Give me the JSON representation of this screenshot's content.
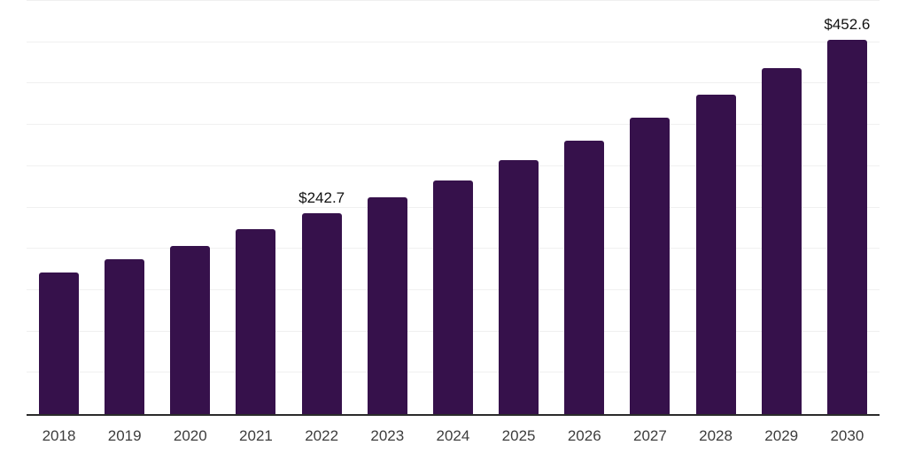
{
  "chart_data": {
    "type": "bar",
    "title": "",
    "xlabel": "",
    "ylabel": "",
    "categories": [
      "2018",
      "2019",
      "2020",
      "2021",
      "2022",
      "2023",
      "2024",
      "2025",
      "2026",
      "2027",
      "2028",
      "2029",
      "2030"
    ],
    "values": [
      171.1,
      187.0,
      203.8,
      223.5,
      242.7,
      262.6,
      283.0,
      306.9,
      330.7,
      358.4,
      386.0,
      418.7,
      452.6
    ],
    "data_labels": [
      {
        "category": "2022",
        "text": "$242.7"
      },
      {
        "category": "2030",
        "text": "$452.6"
      }
    ],
    "ylim": [
      0,
      500
    ],
    "gridline_step": 50,
    "grid": "horizontal",
    "legend_position": "none",
    "y_axis_tick_labels_visible": false,
    "colors": {
      "bar": "#36114B",
      "grid": "#F0F0F0",
      "axis": "#2B2B2B",
      "value_label": "#111111",
      "tick_label": "#3D3D3D",
      "background": "#FFFFFF"
    }
  }
}
